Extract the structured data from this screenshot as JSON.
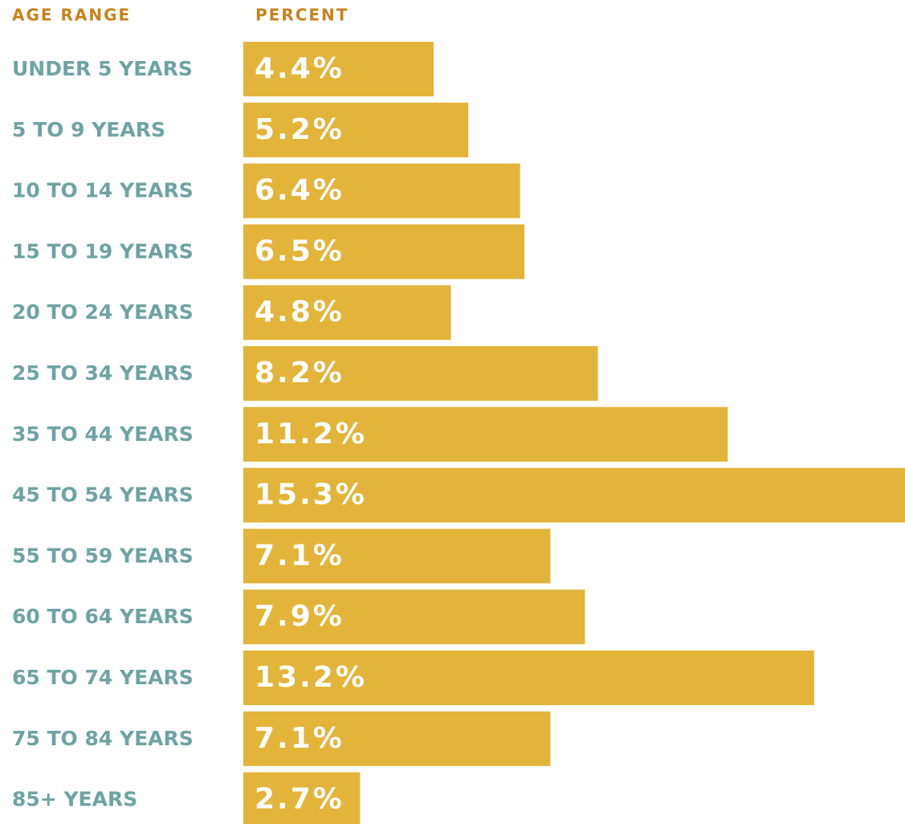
{
  "chart_data": {
    "type": "bar",
    "orientation": "horizontal",
    "y_label": "AGE RANGE",
    "x_label": "PERCENT",
    "categories": [
      "UNDER 5 YEARS",
      "5 TO 9 YEARS",
      "10 TO 14 YEARS",
      "15 TO 19 YEARS",
      "20 TO 24 YEARS",
      "25 TO 34 YEARS",
      "35 TO 44 YEARS",
      "45 TO 54 YEARS",
      "55 TO 59 YEARS",
      "60 TO 64 YEARS",
      "65 TO 74 YEARS",
      "75 TO 84 YEARS",
      "85+ YEARS"
    ],
    "values": [
      4.4,
      5.2,
      6.4,
      6.5,
      4.8,
      8.2,
      11.2,
      15.3,
      7.1,
      7.9,
      13.2,
      7.1,
      2.7
    ],
    "value_labels": [
      "4.4%",
      "5.2%",
      "6.4%",
      "6.5%",
      "4.8%",
      "8.2%",
      "11.2%",
      "15.3%",
      "7.1%",
      "7.9%",
      "13.2%",
      "7.1%",
      "2.7%"
    ],
    "color": "#e3b43a"
  }
}
